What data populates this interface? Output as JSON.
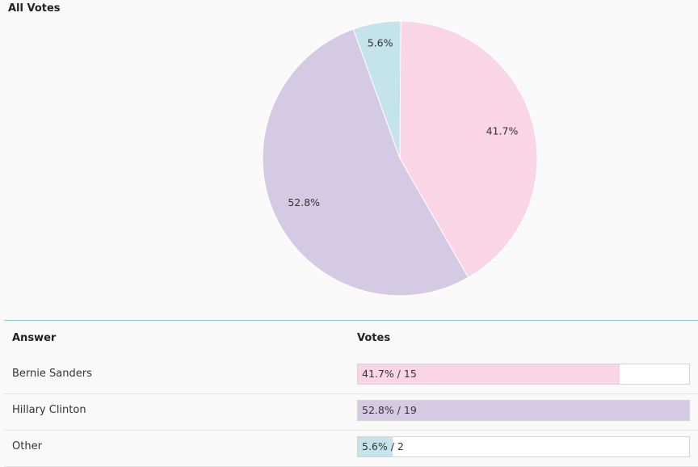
{
  "chart_data": {
    "type": "pie",
    "title": "All Votes",
    "slices": [
      {
        "label": "Bernie Sanders",
        "percent": 41.7,
        "votes": 15,
        "percent_label": "41.7%",
        "bar_label": "41.7% / 15",
        "color": "#fad5e5"
      },
      {
        "label": "Hillary Clinton",
        "percent": 52.8,
        "votes": 19,
        "percent_label": "52.8%",
        "bar_label": "52.8% / 19",
        "color": "#d5cae4"
      },
      {
        "label": "Other",
        "percent": 5.6,
        "votes": 2,
        "percent_label": "5.6%",
        "bar_label": "5.6% / 2",
        "color": "#c4e3ea"
      }
    ]
  },
  "table": {
    "answer_header": "Answer",
    "votes_header": "Votes"
  }
}
